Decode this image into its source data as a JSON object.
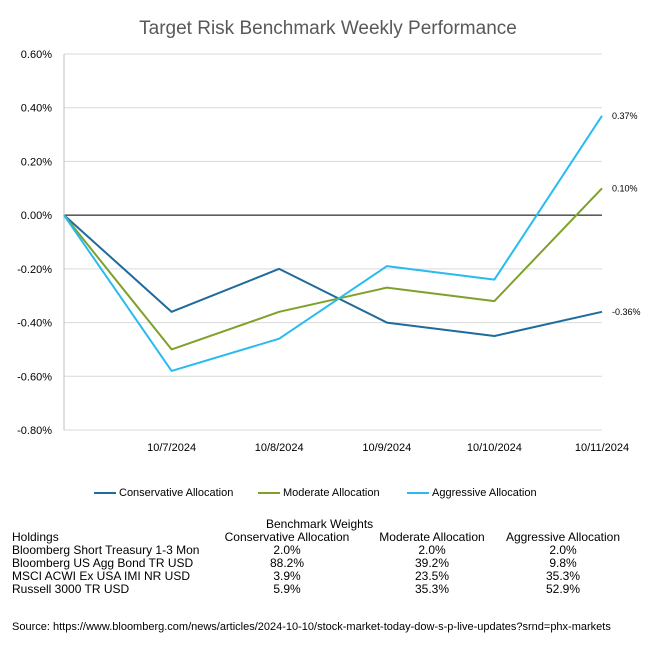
{
  "chart_data": {
    "type": "line",
    "title": "Target Risk Benchmark Weekly Performance",
    "categories": [
      "",
      "10/7/2024",
      "10/8/2024",
      "10/9/2024",
      "10/10/2024",
      "10/11/2024"
    ],
    "ylim": [
      -0.8,
      0.6
    ],
    "yticks": [
      -0.8,
      -0.6,
      -0.4,
      -0.2,
      0.0,
      0.2,
      0.4,
      0.6
    ],
    "ytick_labels": [
      "-0.80%",
      "-0.60%",
      "-0.40%",
      "-0.20%",
      "0.00%",
      "0.20%",
      "0.40%",
      "0.60%"
    ],
    "grid": true,
    "legend_position": "bottom",
    "series": [
      {
        "name": "Conservative Allocation",
        "color": "#1f6b99",
        "values": [
          0.0,
          -0.36,
          -0.2,
          -0.4,
          -0.45,
          -0.36
        ],
        "end_label": "-0.36%"
      },
      {
        "name": "Moderate Allocation",
        "color": "#7fa12a",
        "values": [
          0.0,
          -0.5,
          -0.36,
          -0.27,
          -0.32,
          0.1
        ],
        "end_label": "0.10%"
      },
      {
        "name": "Aggressive Allocation",
        "color": "#29bbef",
        "values": [
          0.0,
          -0.58,
          -0.46,
          -0.19,
          -0.24,
          0.37
        ],
        "end_label": "0.37%"
      }
    ]
  },
  "weights_table": {
    "title": "Benchmark Weights",
    "headers": [
      "Holdings",
      "Conservative Allocation",
      "Moderate Allocation",
      "Aggressive Allocation"
    ],
    "rows": [
      [
        "Bloomberg Short Treasury 1-3 Mon",
        "2.0%",
        "2.0%",
        "2.0%"
      ],
      [
        "Bloomberg US Agg Bond TR USD",
        "88.2%",
        "39.2%",
        "9.8%"
      ],
      [
        "MSCI ACWI Ex USA IMI NR USD",
        "3.9%",
        "23.5%",
        "35.3%"
      ],
      [
        "Russell 3000 TR USD",
        "5.9%",
        "35.3%",
        "52.9%"
      ]
    ]
  },
  "source": "Source: https://www.bloomberg.com/news/articles/2024-10-10/stock-market-today-dow-s-p-live-updates?srnd=phx-markets"
}
